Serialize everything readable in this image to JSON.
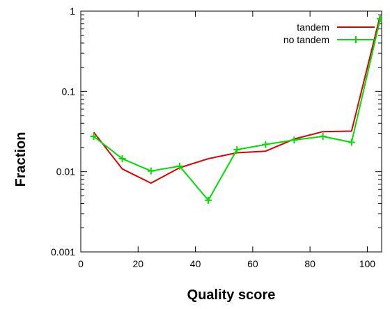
{
  "chart_data": {
    "type": "line",
    "title": "",
    "xlabel": "Quality score",
    "ylabel": "Fraction",
    "xlim": [
      0,
      105
    ],
    "ylim": [
      0.001,
      1
    ],
    "yscale": "log",
    "grid": false,
    "legend_position": "top-right",
    "x_ticks": [
      0,
      20,
      40,
      60,
      80,
      100
    ],
    "x_tick_labels": [
      "0",
      "20",
      "40",
      "60",
      "80",
      "100"
    ],
    "y_ticks": [
      0.001,
      0.01,
      0.1,
      1
    ],
    "y_tick_labels": [
      "0.001",
      "0.01",
      "0.1",
      "1"
    ],
    "series": [
      {
        "name": "tandem",
        "color": "#dd0000",
        "marker": "none",
        "x": [
          4.5,
          14.5,
          24.5,
          34.5,
          44.5,
          54.5,
          64.5,
          74.5,
          84.5,
          94.5,
          104.5
        ],
        "y": [
          0.031,
          0.0108,
          0.0072,
          0.0112,
          0.0145,
          0.0172,
          0.018,
          0.0255,
          0.0315,
          0.032,
          0.88
        ]
      },
      {
        "name": "no tandem",
        "color": "#00dd00",
        "marker": "plus",
        "x": [
          4.5,
          14.5,
          24.5,
          34.5,
          44.5,
          54.5,
          64.5,
          74.5,
          84.5,
          94.5,
          104.5
        ],
        "y": [
          0.0275,
          0.0145,
          0.0102,
          0.0117,
          0.0044,
          0.0188,
          0.0218,
          0.0248,
          0.0275,
          0.0232,
          0.8
        ]
      }
    ]
  }
}
